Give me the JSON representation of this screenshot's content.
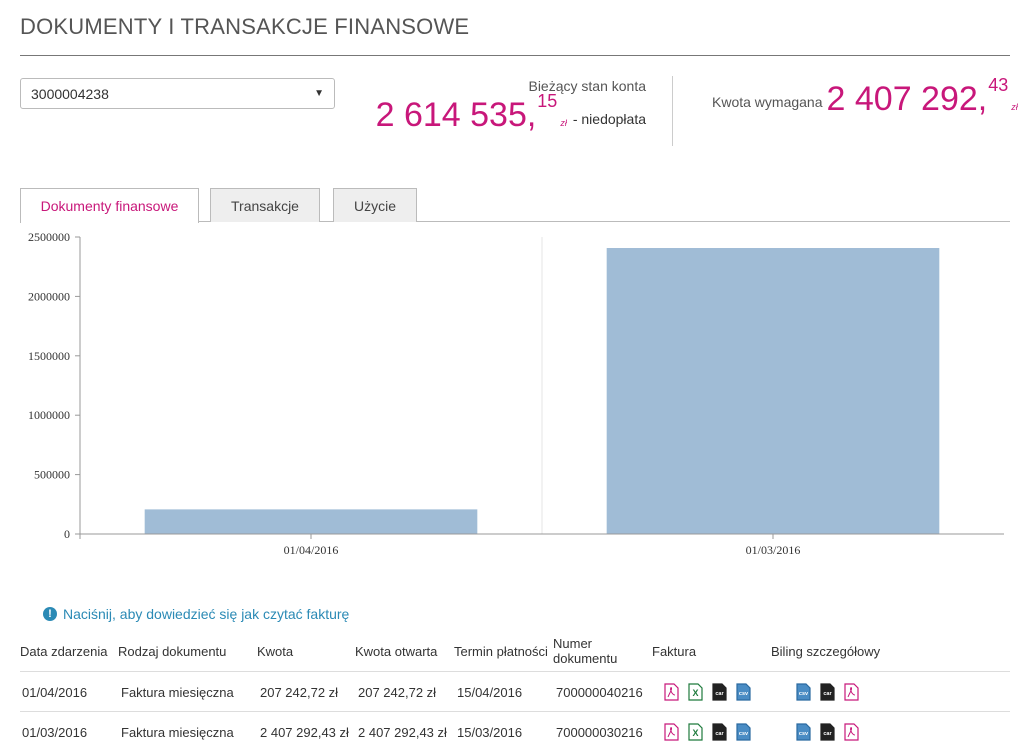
{
  "header": {
    "title": "DOKUMENTY I TRANSAKCJE FINANSOWE"
  },
  "account": {
    "selected": "3000004238"
  },
  "balance": {
    "label": "Bieżący stan konta",
    "amount_main": "2 614 535,",
    "amount_cents": "15",
    "currency": "zł",
    "status": "- niedopłata"
  },
  "required": {
    "label": "Kwota wymagana",
    "amount_main": "2 407 292,",
    "amount_cents": "43",
    "currency": "zł"
  },
  "tabs": [
    {
      "label": "Dokumenty finansowe",
      "active": true
    },
    {
      "label": "Transakcje",
      "active": false
    },
    {
      "label": "Użycie",
      "active": false
    }
  ],
  "chart_data": {
    "type": "bar",
    "categories": [
      "01/04/2016",
      "01/03/2016"
    ],
    "values": [
      207242.72,
      2407292.43
    ],
    "ylim": [
      0,
      2500000
    ],
    "yticks": [
      "0",
      "500000",
      "1000000",
      "1500000",
      "2000000",
      "2500000"
    ],
    "grid": true,
    "bar_color": "#a0bcd6"
  },
  "info": {
    "link_text": "Naciśnij, aby dowiedzieć się jak czytać fakturę"
  },
  "table": {
    "headers": {
      "date": "Data zdarzenia",
      "type": "Rodzaj dokumentu",
      "amount": "Kwota",
      "open": "Kwota otwarta",
      "due": "Termin płatności",
      "number_l1": "Numer",
      "number_l2": "dokumentu",
      "invoice": "Faktura",
      "billing": "Biling szczegółowy"
    },
    "rows": [
      {
        "date": "01/04/2016",
        "type": "Faktura miesięczna",
        "amount": "207 242,72 zł",
        "open": "207 242,72 zł",
        "due": "15/04/2016",
        "number": "700000040216"
      },
      {
        "date": "01/03/2016",
        "type": "Faktura miesięczna",
        "amount": "2 407 292,43 zł",
        "open": "2 407 292,43 zł",
        "due": "15/03/2016",
        "number": "700000030216"
      }
    ],
    "invoice_icons": [
      "pdf-icon",
      "excel-icon",
      "car-icon",
      "csv-icon"
    ],
    "billing_icons": [
      "csv-icon",
      "car-icon",
      "pdf-icon"
    ]
  },
  "colors": {
    "accent": "#c8177a",
    "link": "#2b8ab5"
  }
}
